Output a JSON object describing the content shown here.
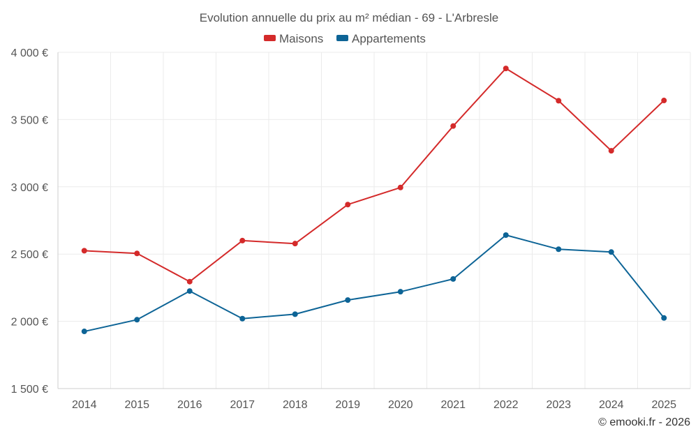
{
  "chart_data": {
    "type": "line",
    "title": "Evolution annuelle du prix au m² médian - 69 - L'Arbresle",
    "categories": [
      "2014",
      "2015",
      "2016",
      "2017",
      "2018",
      "2019",
      "2020",
      "2021",
      "2022",
      "2023",
      "2024",
      "2025"
    ],
    "series": [
      {
        "name": "Maisons",
        "color": "#d42a2a",
        "values": [
          2525,
          2505,
          2295,
          2600,
          2578,
          2868,
          2995,
          3452,
          3880,
          3640,
          3268,
          3642
        ]
      },
      {
        "name": "Appartements",
        "color": "#0d6496",
        "values": [
          1925,
          2012,
          2225,
          2020,
          2053,
          2158,
          2220,
          2315,
          2641,
          2536,
          2515,
          2025
        ]
      }
    ],
    "ylim": [
      1500,
      4000
    ],
    "yticks": [
      1500,
      2000,
      2500,
      3000,
      3500,
      4000
    ],
    "ytick_labels": [
      "1 500 €",
      "2 000 €",
      "2 500 €",
      "3 000 €",
      "3 500 €",
      "4 000 €"
    ],
    "xlabel": "",
    "ylabel": "",
    "legend_position": "top-center",
    "grid": true
  },
  "credit": "© emooki.fr - 2026"
}
